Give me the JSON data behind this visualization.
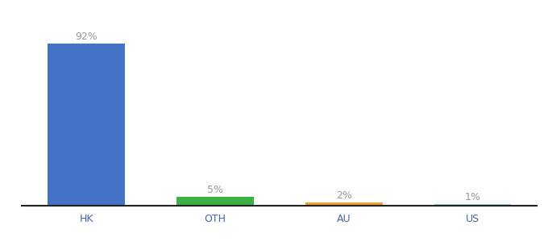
{
  "categories": [
    "HK",
    "OTH",
    "AU",
    "US"
  ],
  "values": [
    92,
    5,
    2,
    1
  ],
  "bar_colors": [
    "#4472c4",
    "#3cb043",
    "#f0a030",
    "#87ceeb"
  ],
  "labels": [
    "92%",
    "5%",
    "2%",
    "1%"
  ],
  "ylim": [
    0,
    100
  ],
  "background_color": "#ffffff",
  "label_fontsize": 9,
  "tick_fontsize": 9,
  "bar_width": 0.6,
  "label_color": "#999999",
  "tick_color": "#4466aa",
  "spine_color": "#222222"
}
